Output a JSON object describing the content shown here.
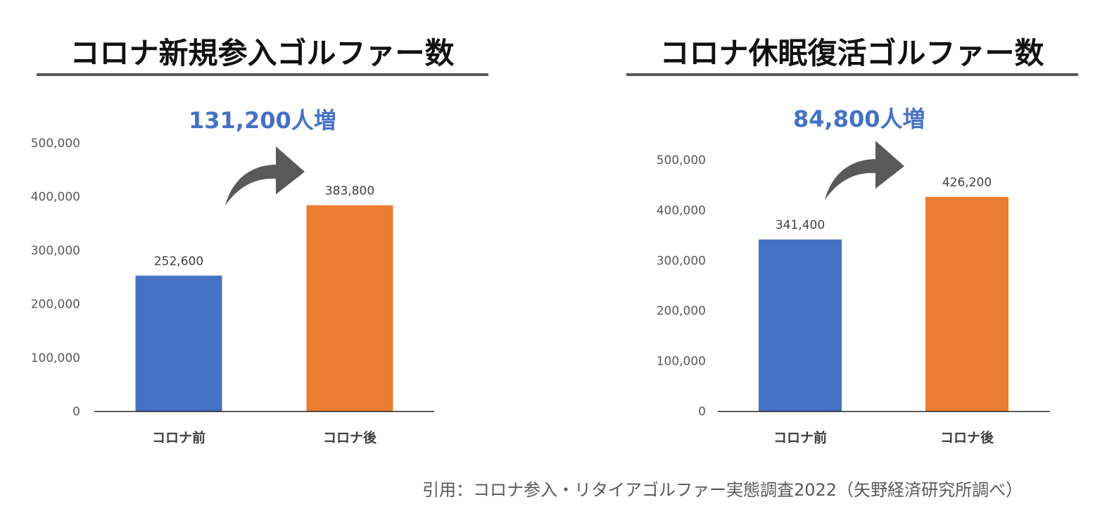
{
  "chart_data": [
    {
      "type": "bar",
      "title": "コロナ新規参入ゴルファー数",
      "increase_label": "131,200人増",
      "categories": [
        "コロナ前",
        "コロナ後"
      ],
      "values": [
        252600,
        383800
      ],
      "value_labels": [
        "252,600",
        "383,800"
      ],
      "bar_colors": [
        "#4472C4",
        "#ED7D31"
      ],
      "ylim": [
        0,
        500000
      ],
      "yticks": [
        "0",
        "100,000",
        "200,000",
        "300,000",
        "400,000",
        "500,000"
      ],
      "xlabel": "",
      "ylabel": "",
      "grid": false,
      "annotation_icon": "curved-arrow-icon"
    },
    {
      "type": "bar",
      "title": "コロナ休眠復活ゴルファー数",
      "increase_label": "84,800人増",
      "categories": [
        "コロナ前",
        "コロナ後"
      ],
      "values": [
        341400,
        426200
      ],
      "value_labels": [
        "341,400",
        "426,200"
      ],
      "bar_colors": [
        "#4472C4",
        "#ED7D31"
      ],
      "ylim": [
        0,
        500000
      ],
      "yticks": [
        "0",
        "100,000",
        "200,000",
        "300,000",
        "400,000",
        "500,000"
      ],
      "xlabel": "",
      "ylabel": "",
      "grid": false,
      "annotation_icon": "curved-arrow-icon"
    }
  ],
  "source": "引用：コロナ参入・リタイアゴルファー実態調査2022（矢野経済研究所調べ）",
  "colors": {
    "accent": "#4472C4",
    "rule": "#595959",
    "arrow": "#595959"
  }
}
